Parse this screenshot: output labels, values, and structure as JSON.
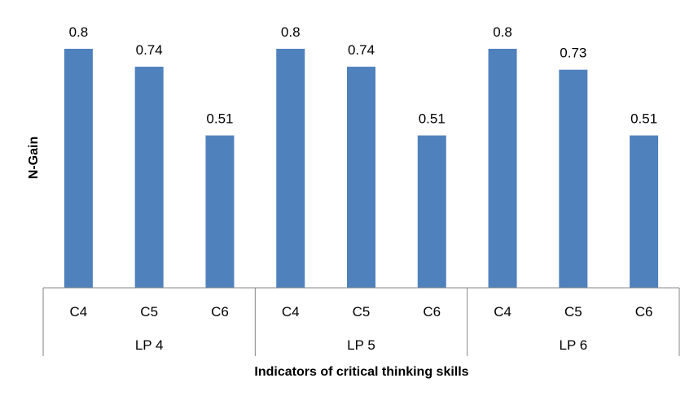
{
  "chart_data": {
    "type": "bar",
    "groups": [
      {
        "label": "LP 4",
        "categories": [
          "C4",
          "C5",
          "C6"
        ],
        "values": [
          0.8,
          0.74,
          0.51
        ],
        "value_labels": [
          "0.8",
          "0.74",
          "0.51"
        ]
      },
      {
        "label": "LP 5",
        "categories": [
          "C4",
          "C5",
          "C6"
        ],
        "values": [
          0.8,
          0.74,
          0.51
        ],
        "value_labels": [
          "0.8",
          "0.74",
          "0.51"
        ]
      },
      {
        "label": "LP 6",
        "categories": [
          "C4",
          "C5",
          "C6"
        ],
        "values": [
          0.8,
          0.73,
          0.51
        ],
        "value_labels": [
          "0.8",
          "0.73",
          "0.51"
        ]
      }
    ],
    "xlabel": "Indicators of critical thinking skills",
    "ylabel": "N-Gain",
    "ylim": [
      0,
      0.8
    ],
    "y_axis_visible": false,
    "grid": false,
    "legend": "none",
    "bar_color": "#4F81BD"
  }
}
